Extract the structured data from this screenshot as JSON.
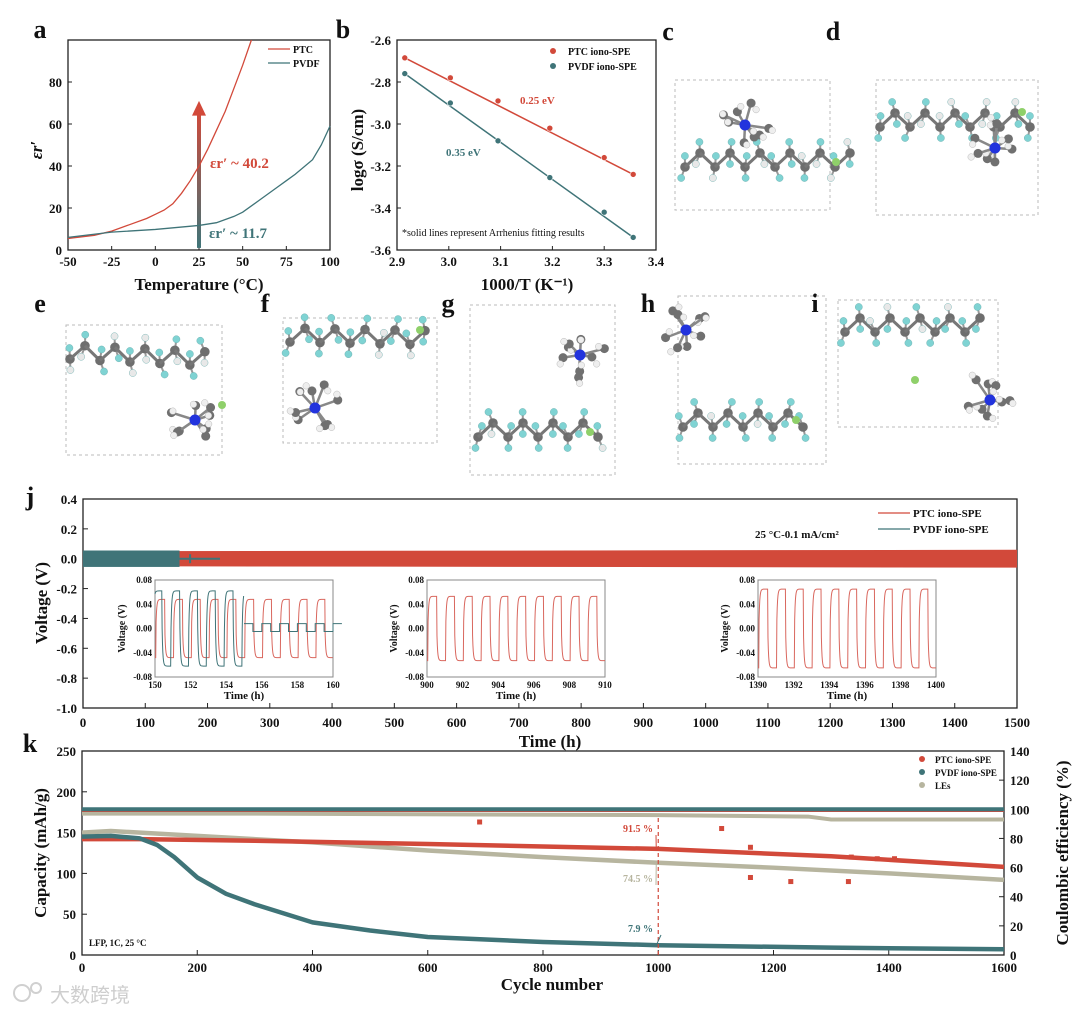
{
  "colors": {
    "ptc": "#d2493a",
    "pvdf": "#3f7478",
    "les": "#b7b59f",
    "ptc_light": "#d9675e",
    "box": "#bbbbbb"
  },
  "panels": [
    "a",
    "b",
    "c",
    "d",
    "e",
    "f",
    "g",
    "h",
    "i",
    "j",
    "k"
  ],
  "watermark": "大数跨境",
  "chart_data": [
    {
      "id": "a",
      "type": "line",
      "xlabel": "Temperature (°C)",
      "ylabel": "εr′",
      "xlim": [
        -50,
        100
      ],
      "ylim": [
        0,
        100
      ],
      "xticks": [
        -50,
        -25,
        0,
        25,
        50,
        75,
        100
      ],
      "yticks": [
        0,
        20,
        40,
        60,
        80
      ],
      "legend": "top-right",
      "series": [
        {
          "name": "PTC",
          "x": [
            -50,
            -35,
            -25,
            -15,
            -5,
            0,
            5,
            10,
            15,
            20,
            25,
            30,
            35,
            40,
            45,
            50,
            55
          ],
          "y": [
            5.5,
            7,
            9,
            12,
            15,
            17,
            19,
            22,
            27,
            33,
            40,
            48,
            57,
            66,
            77,
            88,
            100
          ]
        },
        {
          "name": "PVDF",
          "x": [
            -50,
            -25,
            0,
            25,
            35,
            45,
            50,
            60,
            70,
            75,
            80,
            90,
            95,
            100
          ],
          "y": [
            6,
            8.5,
            9.8,
            11.7,
            13,
            16,
            18,
            24,
            30,
            33,
            36,
            43,
            50,
            59
          ]
        }
      ],
      "annotations": [
        {
          "text": "εr′ ~ 40.2",
          "series": "PTC"
        },
        {
          "text": "εr′ ~ 11.7",
          "series": "PVDF"
        }
      ],
      "arrow_at_x": 25
    },
    {
      "id": "b",
      "type": "scatter",
      "xlabel": "1000/T (K⁻¹)",
      "ylabel": "logσ (S/cm)",
      "xlim": [
        2.9,
        3.4
      ],
      "ylim": [
        -3.6,
        -2.6
      ],
      "xticks": [
        "2.9",
        "3.0",
        "3.1",
        "3.2",
        "3.3",
        "3.4"
      ],
      "yticks": [
        "-3.6",
        "-3.4",
        "-3.2",
        "-3.0",
        "-2.8",
        "-2.6"
      ],
      "legend": "top-right",
      "series": [
        {
          "name": "PTC iono-SPE",
          "x": [
            2.915,
            3.003,
            3.095,
            3.195,
            3.3,
            3.356
          ],
          "y": [
            -2.685,
            -2.78,
            -2.89,
            -3.02,
            -3.16,
            -3.24
          ],
          "label": "0.25 eV"
        },
        {
          "name": "PVDF iono-SPE",
          "x": [
            2.915,
            3.003,
            3.095,
            3.195,
            3.3,
            3.356
          ],
          "y": [
            -2.76,
            -2.9,
            -3.08,
            -3.255,
            -3.42,
            -3.54
          ],
          "label": "0.35 eV"
        }
      ],
      "note": "*solid lines represent Arrhenius fitting results"
    },
    {
      "id": "j",
      "type": "line",
      "xlabel": "Time (h)",
      "ylabel": "Voltage (V)",
      "xlim": [
        0,
        1500
      ],
      "ylim": [
        -1.0,
        0.4
      ],
      "xticks": [
        0,
        100,
        200,
        300,
        400,
        500,
        600,
        700,
        800,
        900,
        1000,
        1100,
        1200,
        1300,
        1400,
        1500
      ],
      "yticks": [
        "-1.0",
        "-0.8",
        "-0.6",
        "-0.4",
        "-0.2",
        "0.0",
        "0.2",
        "0.4"
      ],
      "legend": "top-right",
      "condition": "25 °C-0.1 mA/cm²",
      "series": [
        {
          "name": "PTC iono-SPE",
          "band_start": 0,
          "band_end": 1500,
          "amplitude_start": 0.05,
          "amplitude_end": 0.06
        },
        {
          "name": "PVDF iono-SPE",
          "band_start": 0,
          "band_end": 155,
          "amplitude_start": 0.055,
          "amplitude_end": 0.055,
          "tail_end": 220
        }
      ],
      "insets": [
        {
          "xlim": [
            150,
            160
          ],
          "ylim": [
            -0.08,
            0.08
          ],
          "xticks": [
            "150",
            "152",
            "154",
            "156",
            "158",
            "160"
          ],
          "yticks": [
            "-0.08",
            "-0.04",
            "0.00",
            "0.04",
            "0.08"
          ],
          "xlabel": "Time (h)",
          "ylabel": "Voltage (V)",
          "ptc_amp": 0.048,
          "pvdf_amp": 0.062,
          "pvdf_short_at": 155
        },
        {
          "xlim": [
            900,
            910
          ],
          "yticks": [
            "-0.08",
            "-0.04",
            "0.00",
            "0.04",
            "0.08"
          ],
          "xticks": [
            "900",
            "902",
            "904",
            "906",
            "908",
            "910"
          ],
          "xlabel": "Time (h)",
          "ylabel": "Voltage (V)",
          "ptc_amp": 0.053
        },
        {
          "xlim": [
            1390,
            1400
          ],
          "yticks": [
            "-0.08",
            "-0.04",
            "0.00",
            "0.04",
            "0.08"
          ],
          "xticks": [
            "1390",
            "1392",
            "1394",
            "1396",
            "1398",
            "1400"
          ],
          "xlabel": "Time (h)",
          "ylabel": "Voltage (V)",
          "ptc_amp": 0.065
        }
      ]
    },
    {
      "id": "k",
      "type": "scatter",
      "xlabel": "Cycle number",
      "ylabel": "Capacity (mAh/g)",
      "ylabel_right": "Coulombic efficiency (%)",
      "xlim": [
        0,
        1600
      ],
      "ylim": [
        0,
        250
      ],
      "ylim_right": [
        0,
        140
      ],
      "xticks": [
        0,
        200,
        400,
        600,
        800,
        1000,
        1200,
        1400,
        1600
      ],
      "yticks": [
        0,
        50,
        100,
        150,
        200,
        250
      ],
      "yticks_right": [
        0,
        20,
        40,
        60,
        80,
        100,
        120,
        140
      ],
      "legend": "top-right",
      "condition": "LFP, 1C, 25 °C",
      "capacity": [
        {
          "name": "PTC iono-SPE",
          "x": [
            0,
            100,
            300,
            600,
            1000,
            1300,
            1600
          ],
          "y": [
            142,
            142,
            140,
            136,
            130,
            121,
            108
          ]
        },
        {
          "name": "PVDF iono-SPE",
          "x": [
            0,
            50,
            100,
            130,
            160,
            200,
            250,
            300,
            400,
            500,
            600,
            800,
            1000,
            1300,
            1600
          ],
          "y": [
            145,
            146,
            143,
            135,
            120,
            95,
            75,
            62,
            40,
            30,
            22,
            16,
            12,
            9,
            7
          ]
        },
        {
          "name": "LEs",
          "x": [
            0,
            50,
            200,
            400,
            600,
            800,
            1000,
            1200,
            1400,
            1600
          ],
          "y": [
            150,
            152,
            146,
            138,
            128,
            120,
            113,
            107,
            100,
            92
          ]
        }
      ],
      "efficiency": [
        {
          "name": "PTC iono-SPE",
          "x": [
            0,
            1600
          ],
          "y": [
            99.5,
            99.5
          ]
        },
        {
          "name": "PVDF iono-SPE",
          "x": [
            0,
            1600
          ],
          "y": [
            100,
            100
          ]
        },
        {
          "name": "LEs",
          "x": [
            0,
            300,
            1000,
            1260,
            1300,
            1600
          ],
          "y": [
            97,
            97,
            96,
            95,
            93,
            93
          ]
        }
      ],
      "retention_labels": [
        {
          "text": "91.5 %",
          "series": "PTC iono-SPE"
        },
        {
          "text": "74.5 %",
          "series": "LEs"
        },
        {
          "text": "7.9 %",
          "series": "PVDF iono-SPE"
        }
      ],
      "marker_cycle": 1000
    }
  ]
}
